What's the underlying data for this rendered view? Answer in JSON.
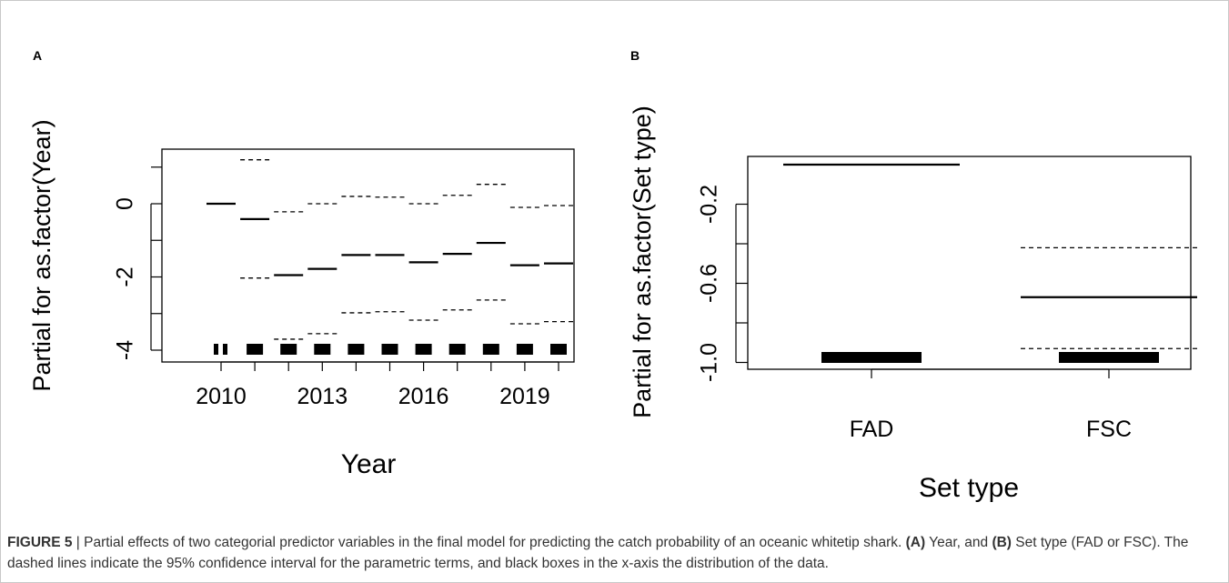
{
  "chart_data": [
    {
      "type": "line",
      "panel_label": "A",
      "xlabel": "Year",
      "ylabel": "Partial for as.factor(Year)",
      "categories": [
        "2010",
        "2011",
        "2012",
        "2013",
        "2014",
        "2015",
        "2016",
        "2017",
        "2018",
        "2019",
        "2020"
      ],
      "x_tick_labels": [
        "2010",
        "2013",
        "2016",
        "2019"
      ],
      "y_ticks": [
        -4,
        -2,
        0
      ],
      "ylim": [
        -4.4,
        1.4
      ],
      "series": [
        {
          "values": [
            0.0,
            -0.42,
            -1.95,
            -1.78,
            -1.4,
            -1.4,
            -1.6,
            -1.37,
            -1.07,
            -1.68,
            -1.63
          ]
        },
        {
          "values": [
            null,
            1.2,
            -0.22,
            0.0,
            0.2,
            0.18,
            0.0,
            0.23,
            0.53,
            -0.1,
            -0.05
          ]
        },
        {
          "values": [
            null,
            -2.03,
            -3.7,
            -3.55,
            -2.98,
            -2.95,
            -3.18,
            -2.9,
            -2.63,
            -3.28,
            -3.22
          ]
        }
      ],
      "rug_counts": [
        2,
        1,
        1,
        1,
        1,
        1,
        1,
        1,
        1,
        1,
        1
      ]
    },
    {
      "type": "line",
      "panel_label": "B",
      "xlabel": "Set type",
      "ylabel": "Partial for as.factor(Set type)",
      "categories": [
        "FAD",
        "FSC"
      ],
      "y_ticks": [
        -1.0,
        -0.6,
        -0.2
      ],
      "ylim": [
        -1.04,
        0.0
      ],
      "series": [
        {
          "values": [
            0.0,
            -0.67
          ]
        },
        {
          "values": [
            null,
            -0.42
          ]
        },
        {
          "values": [
            null,
            -0.93
          ]
        }
      ],
      "rug_counts": [
        1,
        1
      ]
    }
  ],
  "caption": {
    "label": "FIGURE 5",
    "sep": " | ",
    "text1": "Partial effects of two categorial predictor variables in the final model for predicting the catch probability of an oceanic whitetip shark. ",
    "a_label": "(A)",
    "text2": " Year, and ",
    "b_label": "(B)",
    "text3": " Set type (FAD or FSC). The dashed lines indicate the 95% confidence interval for the parametric terms, and black boxes in the x-axis the distribution of the data."
  }
}
